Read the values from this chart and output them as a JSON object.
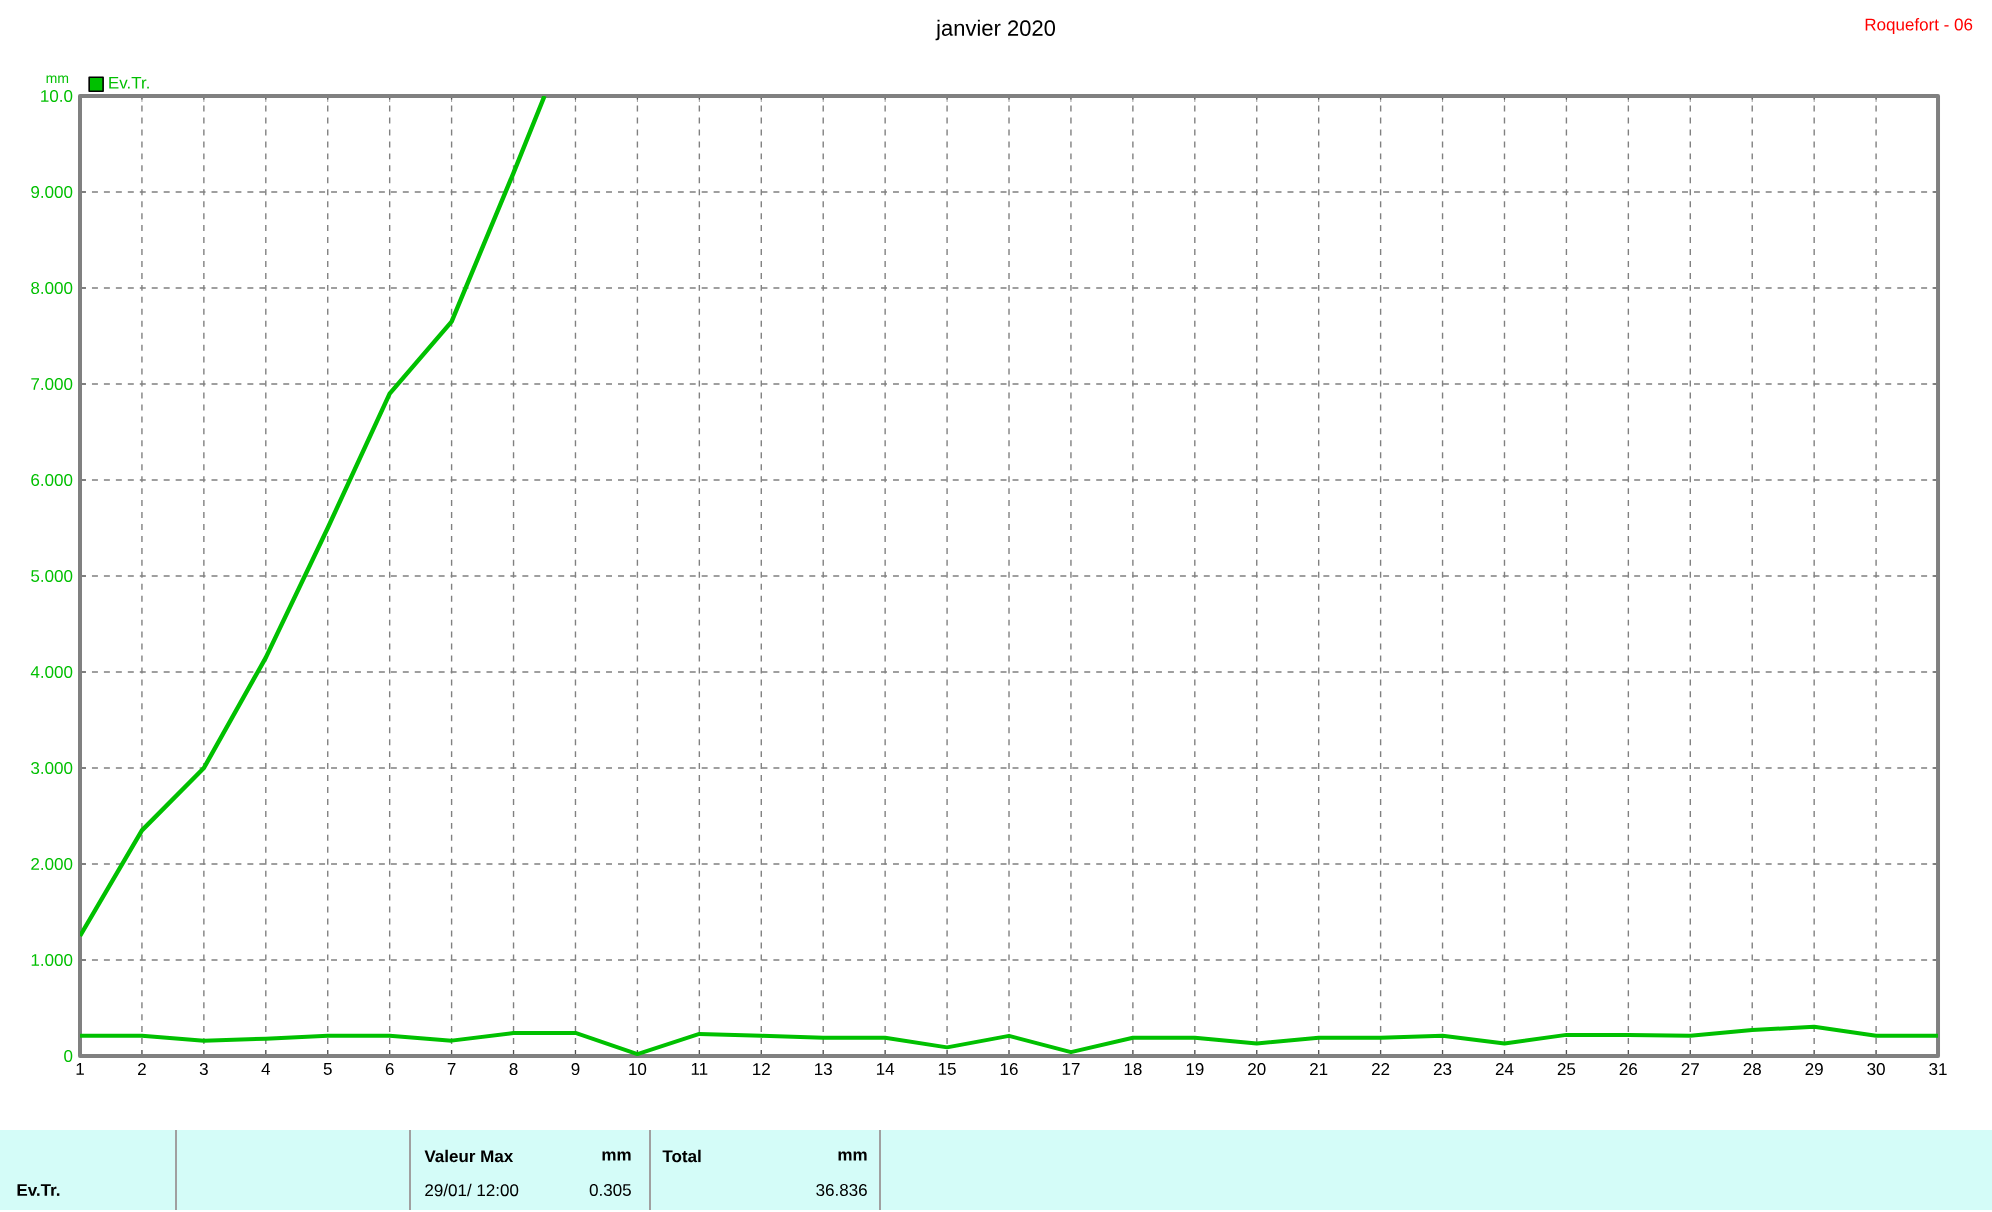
{
  "chart_data": {
    "type": "line",
    "title": "janvier 2020",
    "subtitle": "Roquefort - 06",
    "ylabel": "mm",
    "x": [
      1,
      2,
      3,
      4,
      5,
      6,
      7,
      8,
      9,
      10,
      11,
      12,
      13,
      14,
      15,
      16,
      17,
      18,
      19,
      20,
      21,
      22,
      23,
      24,
      25,
      26,
      27,
      28,
      29,
      30,
      31
    ],
    "series": [
      {
        "name": "Ev.Tr.",
        "color": "#00c000",
        "values": [
          0.21,
          0.21,
          0.16,
          0.18,
          0.21,
          0.21,
          0.16,
          0.24,
          0.24,
          0.02,
          0.23,
          0.21,
          0.19,
          0.19,
          0.09,
          0.21,
          0.04,
          0.19,
          0.19,
          0.13,
          0.19,
          0.19,
          0.21,
          0.13,
          0.22,
          0.22,
          0.21,
          0.27,
          0.305,
          0.21,
          0.21
        ]
      },
      {
        "color": "#00c000",
        "x": [
          1,
          2,
          3,
          4,
          5,
          6,
          7,
          8,
          8.5
        ],
        "values": [
          1.25,
          2.35,
          3.0,
          4.15,
          5.5,
          6.9,
          7.65,
          9.2,
          10.0
        ]
      }
    ],
    "xlim": [
      1,
      31
    ],
    "ylim": [
      0,
      10
    ],
    "xticks": [
      1,
      2,
      3,
      4,
      5,
      6,
      7,
      8,
      9,
      10,
      11,
      12,
      13,
      14,
      15,
      16,
      17,
      18,
      19,
      20,
      21,
      22,
      23,
      24,
      25,
      26,
      27,
      28,
      29,
      30,
      31
    ],
    "yticks": [
      0,
      {
        "value": 1,
        "label": "1.000"
      },
      {
        "value": 2,
        "label": "2.000"
      },
      {
        "value": 3,
        "label": "3.000"
      },
      {
        "value": 4,
        "label": "4.000"
      },
      {
        "value": 5,
        "label": "5.000"
      },
      {
        "value": 6,
        "label": "6.000"
      },
      {
        "value": 7,
        "label": "7.000"
      },
      {
        "value": 8,
        "label": "8.000"
      },
      {
        "value": 9,
        "label": "9.000"
      },
      {
        "value": 10,
        "label": "10.0"
      }
    ],
    "grid": true,
    "legend": "top left",
    "marker": "none",
    "line_style": "solid",
    "annotations": [
      "Ev.Tr.",
      "Valeur Max",
      "mm",
      "29/01/  12:00",
      "0.305",
      "Total",
      "mm",
      "36.836"
    ]
  }
}
